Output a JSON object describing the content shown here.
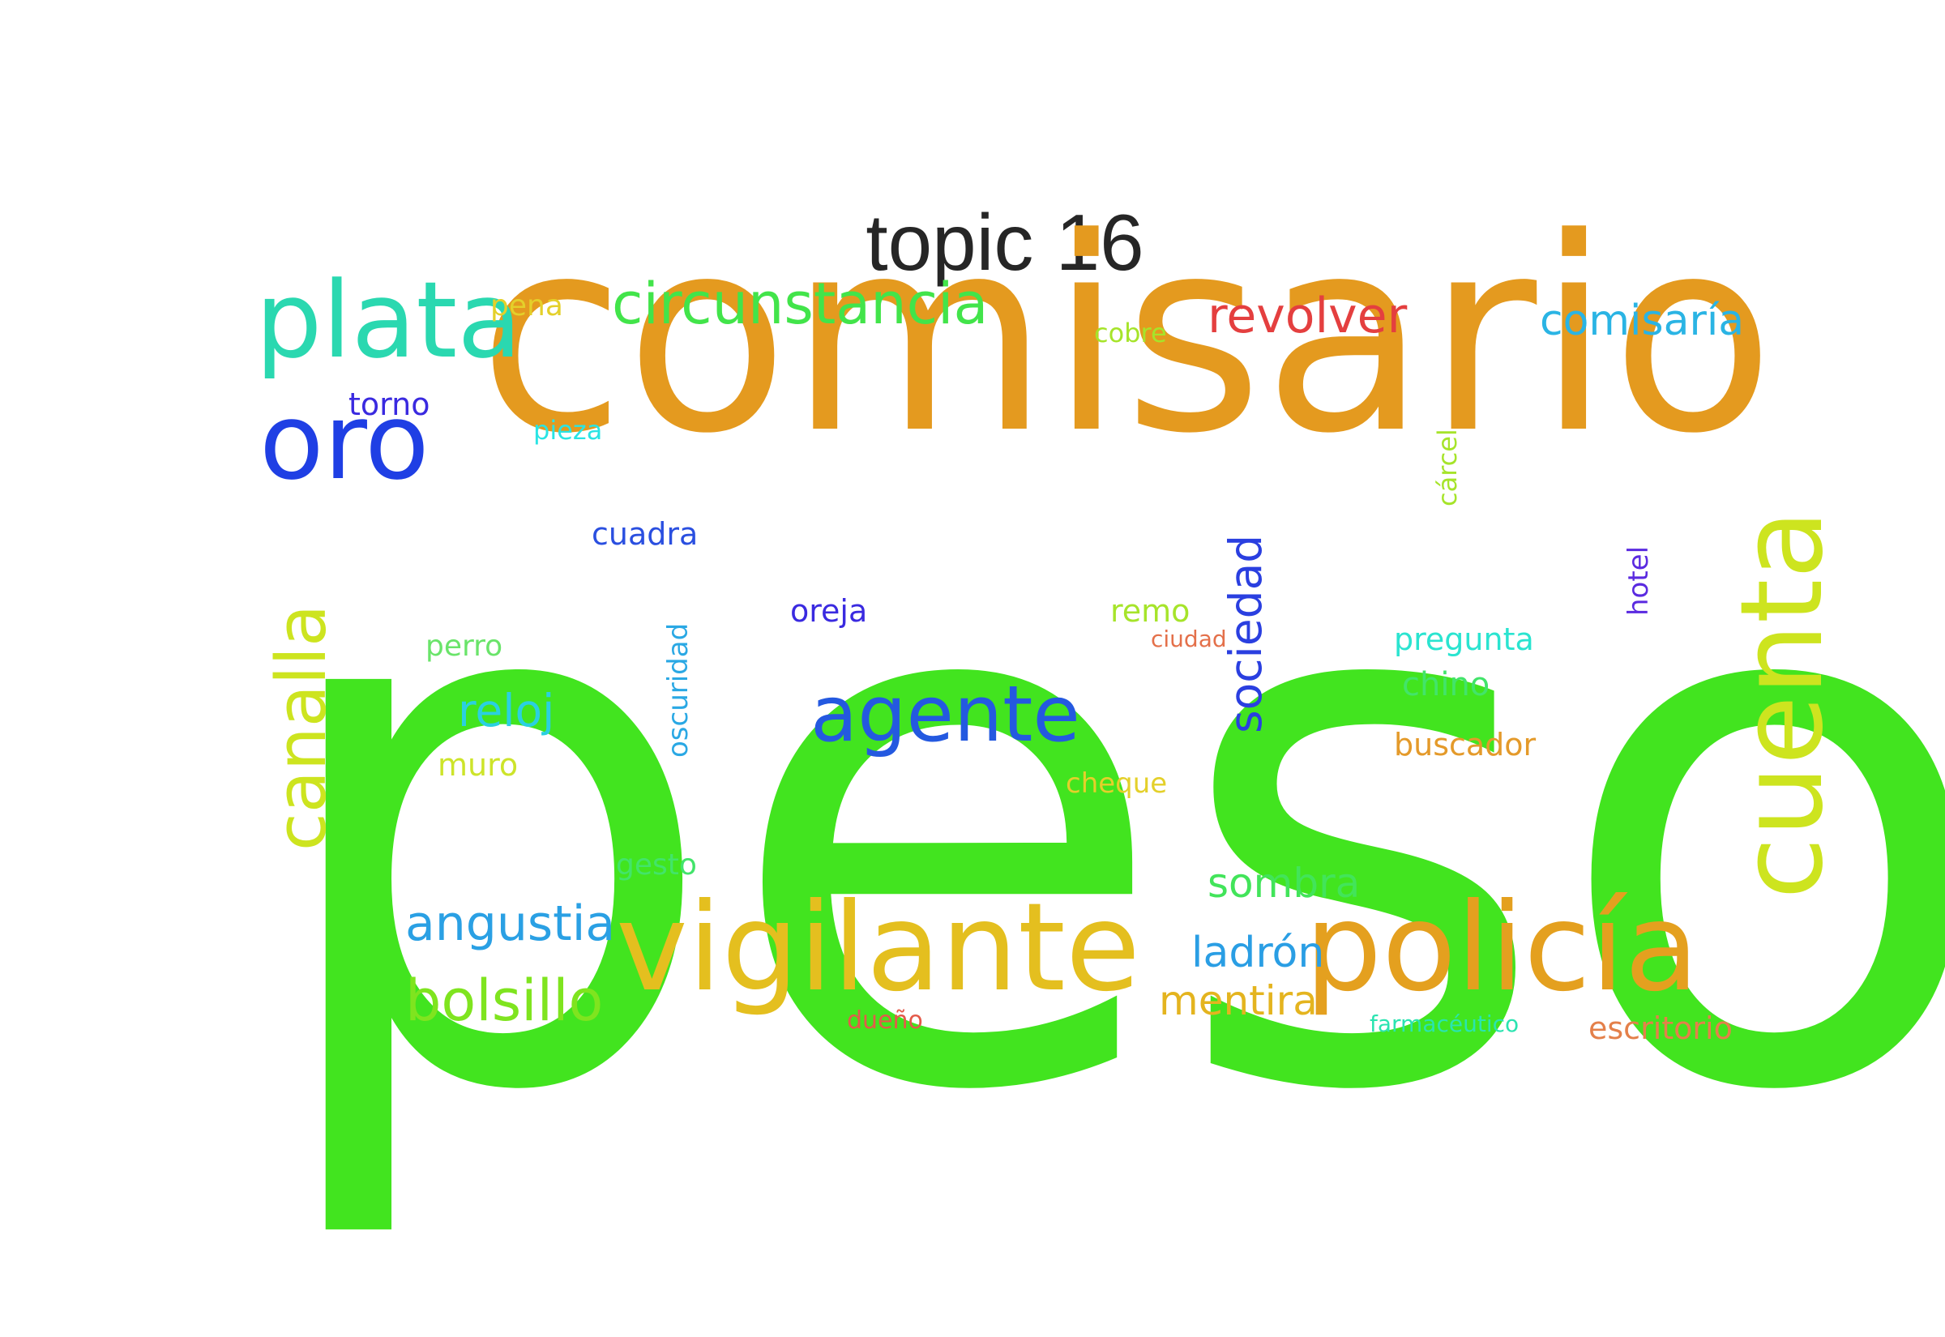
{
  "title": "topic 16",
  "words": [
    {
      "text": "peso",
      "color": "#42e41f",
      "vertical": false
    },
    {
      "text": "comisario",
      "color": "#e49a1f",
      "vertical": false
    },
    {
      "text": "vigilante",
      "color": "#e4bf1f",
      "vertical": false
    },
    {
      "text": "policía",
      "color": "#e4a01f",
      "vertical": false
    },
    {
      "text": "cuenta",
      "color": "#cde41f",
      "vertical": true
    },
    {
      "text": "plata",
      "color": "#2ad8b0",
      "vertical": false
    },
    {
      "text": "oro",
      "color": "#1f3fe4",
      "vertical": false
    },
    {
      "text": "canalla",
      "color": "#cde41f",
      "vertical": true
    },
    {
      "text": "agente",
      "color": "#2459e0",
      "vertical": false
    },
    {
      "text": "circunstancia",
      "color": "#42e44a",
      "vertical": false
    },
    {
      "text": "sociedad",
      "color": "#2a3fe0",
      "vertical": true
    },
    {
      "text": "bolsillo",
      "color": "#7fe41f",
      "vertical": false
    },
    {
      "text": "revolver",
      "color": "#e43f3f",
      "vertical": false
    },
    {
      "text": "comisaría",
      "color": "#2ab4e4",
      "vertical": false
    },
    {
      "text": "angustia",
      "color": "#2aa0e4",
      "vertical": false
    },
    {
      "text": "reloj",
      "color": "#2ad0e0",
      "vertical": false
    },
    {
      "text": "sombra",
      "color": "#42e45a",
      "vertical": false
    },
    {
      "text": "ladrón",
      "color": "#2a9ee4",
      "vertical": false
    },
    {
      "text": "mentira",
      "color": "#e4b41f",
      "vertical": false
    },
    {
      "text": "escritorio",
      "color": "#e4804a",
      "vertical": false
    },
    {
      "text": "buscador",
      "color": "#e49a2a",
      "vertical": false
    },
    {
      "text": "chino",
      "color": "#42e46a",
      "vertical": false
    },
    {
      "text": "pregunta",
      "color": "#2ae4d0",
      "vertical": false
    },
    {
      "text": "oscuridad",
      "color": "#2aa8e4",
      "vertical": true
    },
    {
      "text": "cuadra",
      "color": "#2a4fe0",
      "vertical": false
    },
    {
      "text": "torno",
      "color": "#3a2ae0",
      "vertical": false
    },
    {
      "text": "oreja",
      "color": "#3a2ae0",
      "vertical": false
    },
    {
      "text": "remo",
      "color": "#a6e42a",
      "vertical": false
    },
    {
      "text": "hotel",
      "color": "#5a2ae0",
      "vertical": true
    },
    {
      "text": "cárcel",
      "color": "#a6e42a",
      "vertical": true
    },
    {
      "text": "muro",
      "color": "#cde42a",
      "vertical": false
    },
    {
      "text": "perro",
      "color": "#6ae46a",
      "vertical": false
    },
    {
      "text": "cheque",
      "color": "#e4d02a",
      "vertical": false
    },
    {
      "text": "gesto",
      "color": "#42e46a",
      "vertical": false
    },
    {
      "text": "pena",
      "color": "#e4d02a",
      "vertical": false
    },
    {
      "text": "cobre",
      "color": "#a6e42a",
      "vertical": false
    },
    {
      "text": "pieza",
      "color": "#2ae4e4",
      "vertical": false
    },
    {
      "text": "ciudad",
      "color": "#e4704a",
      "vertical": false
    },
    {
      "text": "dueño",
      "color": "#e45a4a",
      "vertical": false
    },
    {
      "text": "farmacéutico",
      "color": "#2ae4b0",
      "vertical": false
    }
  ]
}
